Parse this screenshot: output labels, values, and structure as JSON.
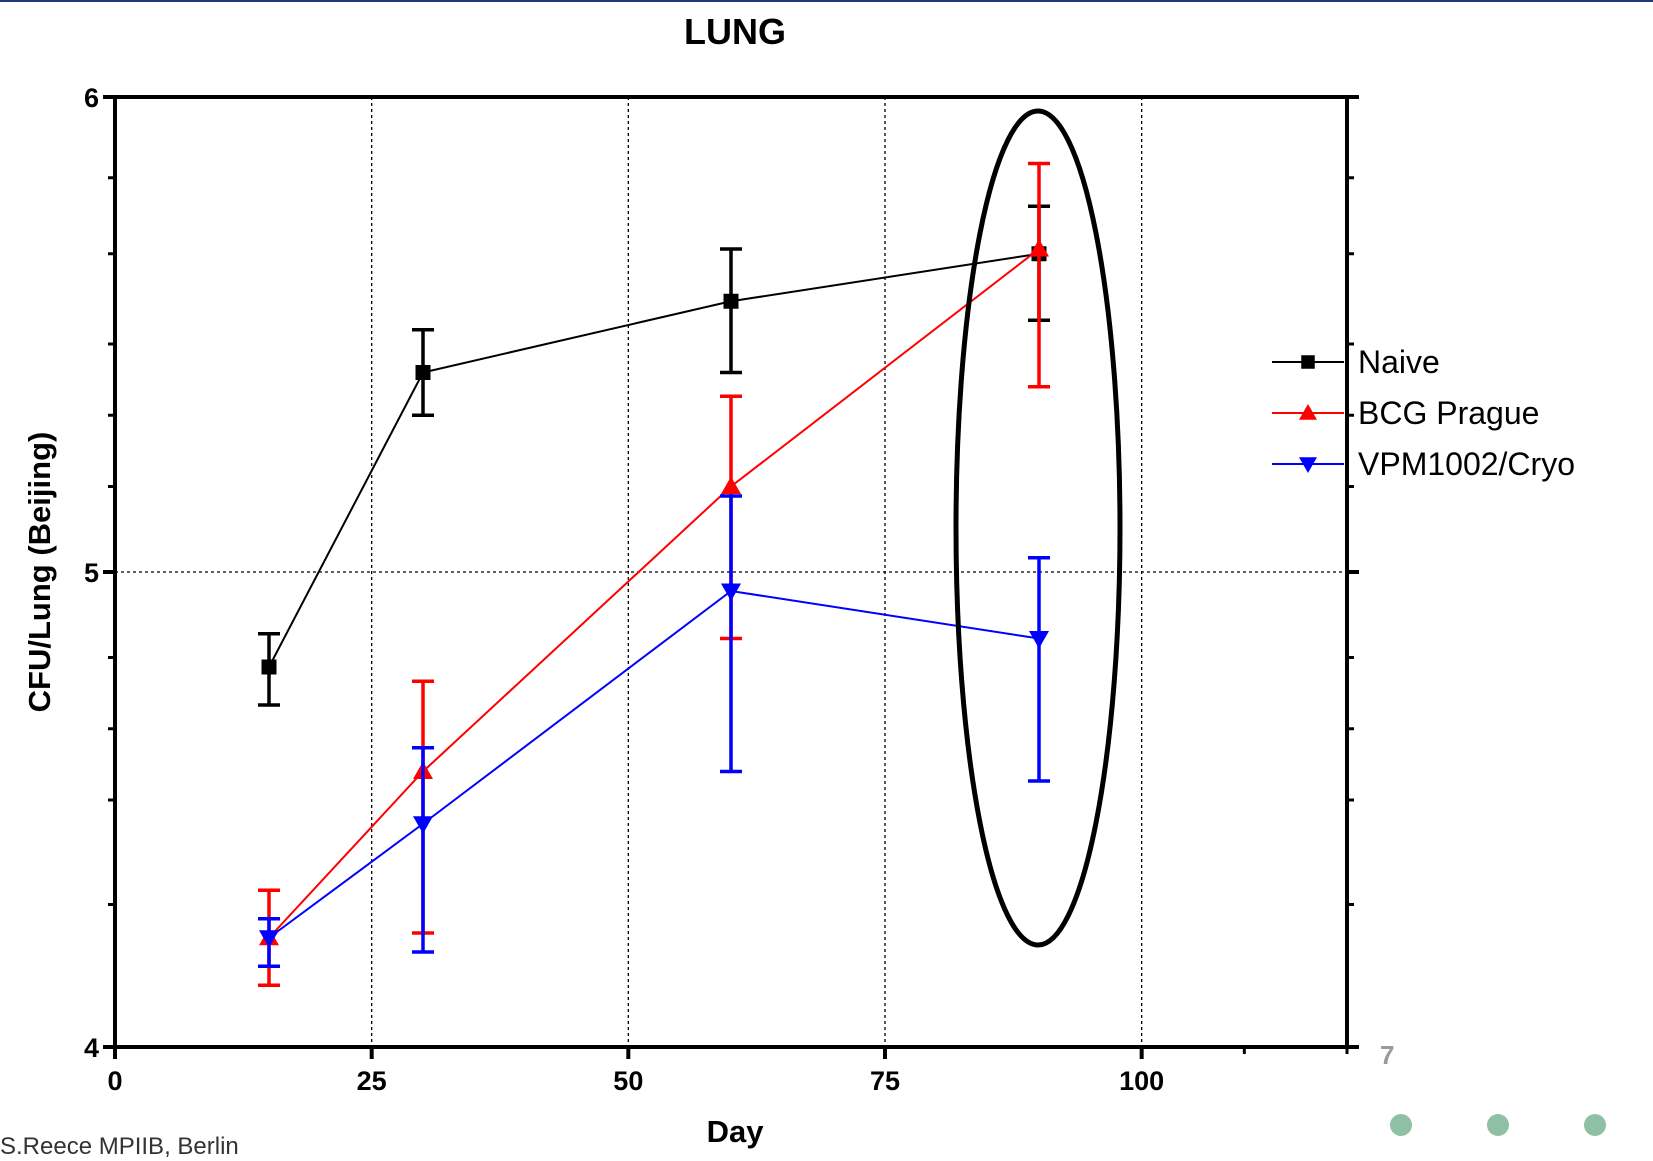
{
  "slide": {
    "credit": "S.Reece MPIIB, Berlin",
    "page_number": "7",
    "accent_color": "#1f3a78",
    "dot_color": "#8fbfa4"
  },
  "chart_data": {
    "type": "line",
    "title": "LUNG",
    "xlabel": "Day",
    "ylabel": "CFU/Lung (Beijing)",
    "xlim": [
      0,
      120
    ],
    "ylim": [
      4,
      6
    ],
    "x_ticks": [
      "0",
      "25",
      "50",
      "75",
      "100"
    ],
    "y_ticks": [
      "4",
      "5",
      "6"
    ],
    "grid": "dotted at x=25,50,75,100 and y=5",
    "legend_position": "right",
    "series": [
      {
        "name": "Naive",
        "color": "#000000",
        "marker": "square",
        "x": [
          15,
          30,
          60,
          90
        ],
        "y": [
          4.8,
          5.42,
          5.57,
          5.67
        ],
        "err_low": [
          4.72,
          5.33,
          5.42,
          5.53
        ],
        "err_high": [
          4.87,
          5.51,
          5.68,
          5.77
        ]
      },
      {
        "name": "BCG Prague",
        "color": "#ff0000",
        "marker": "triangle-up",
        "x": [
          15,
          30,
          60,
          90
        ],
        "y": [
          4.23,
          4.58,
          5.18,
          5.68
        ],
        "err_low": [
          4.13,
          4.24,
          4.86,
          5.39
        ],
        "err_high": [
          4.33,
          4.77,
          5.37,
          5.86
        ]
      },
      {
        "name": "VPM1002/Cryo",
        "color": "#0000ff",
        "marker": "triangle-down",
        "x": [
          15,
          30,
          60,
          90
        ],
        "y": [
          4.23,
          4.47,
          4.96,
          4.86
        ],
        "err_low": [
          4.17,
          4.2,
          4.58,
          4.56
        ],
        "err_high": [
          4.27,
          4.63,
          5.16,
          5.03
        ]
      }
    ],
    "annotation": "ellipse around day 90 points"
  }
}
